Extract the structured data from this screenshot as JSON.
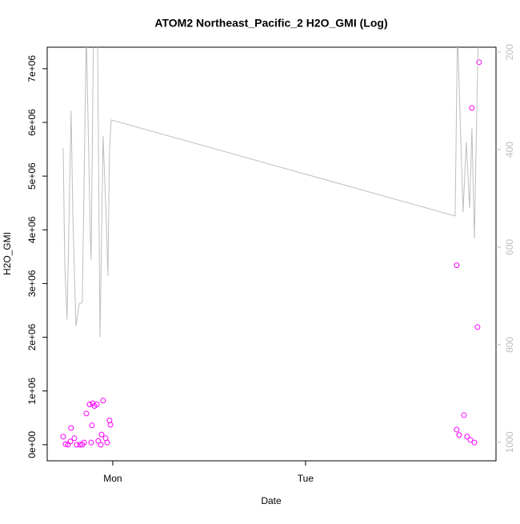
{
  "chart_data": {
    "type": "scatter",
    "title": "ATOM2 Northeast_Pacific_2 H2O_GMI (Log)",
    "xlabel": "Date",
    "ylabel": "H2O_GMI",
    "xlim": [
      -0.34,
      1.988
    ],
    "xticks": [
      {
        "value": 0,
        "label": "Mon"
      },
      {
        "value": 1,
        "label": "Tue"
      }
    ],
    "ylim": [
      -300000,
      7400000
    ],
    "yticks": [
      {
        "value": 0,
        "label": "0e+00"
      },
      {
        "value": 1000000,
        "label": "1e+06"
      },
      {
        "value": 2000000,
        "label": "2e+06"
      },
      {
        "value": 3000000,
        "label": "3e+06"
      },
      {
        "value": 4000000,
        "label": "4e+06"
      },
      {
        "value": 5000000,
        "label": "5e+06"
      },
      {
        "value": 6000000,
        "label": "6e+06"
      },
      {
        "value": 7000000,
        "label": "7e+06"
      }
    ],
    "y2lim": [
      1038,
      190
    ],
    "y2ticks": [
      200,
      400,
      600,
      800,
      1000
    ],
    "series": [
      {
        "color": "#ff00ff",
        "x": [
          -0.257,
          -0.245,
          -0.232,
          -0.22,
          -0.216,
          -0.199,
          -0.187,
          -0.17,
          -0.158,
          -0.149,
          -0.137,
          -0.12,
          -0.112,
          -0.108,
          -0.104,
          -0.095,
          -0.083,
          -0.075,
          -0.062,
          -0.058,
          -0.05,
          -0.037,
          -0.029,
          -0.017,
          -0.012,
          1.784,
          1.797,
          1.784,
          1.822,
          1.838,
          1.855,
          1.863,
          1.876,
          1.892,
          1.9
        ],
        "values": [
          150000,
          10000,
          0,
          60000,
          310000,
          120000,
          0,
          0,
          0,
          40000,
          580000,
          750000,
          40000,
          360000,
          770000,
          720000,
          750000,
          70000,
          0,
          190000,
          820000,
          120000,
          40000,
          450000,
          370000,
          280000,
          180000,
          3340000,
          550000,
          150000,
          90000,
          6270000,
          40000,
          2190000,
          7120000
        ]
      },
      {
        "color": "#bebebe",
        "axis": "y2",
        "x": [
          -0.257,
          -0.249,
          -0.237,
          -0.216,
          -0.207,
          -0.191,
          -0.174,
          -0.158,
          -0.137,
          -0.116,
          -0.112,
          -0.1,
          -0.079,
          -0.066,
          -0.05,
          -0.033,
          -0.025,
          -0.017,
          -0.008,
          1.776,
          1.788,
          1.801,
          1.817,
          1.834,
          1.851,
          1.863,
          1.876,
          1.896,
          1.905
        ],
        "values": [
          397,
          634,
          749,
          320,
          536,
          762,
          716,
          713,
          159,
          585,
          626,
          159,
          159,
          785,
          372,
          552,
          659,
          405,
          339,
          536,
          159,
          323,
          528,
          384,
          520,
          356,
          582,
          159,
          159
        ]
      }
    ]
  }
}
